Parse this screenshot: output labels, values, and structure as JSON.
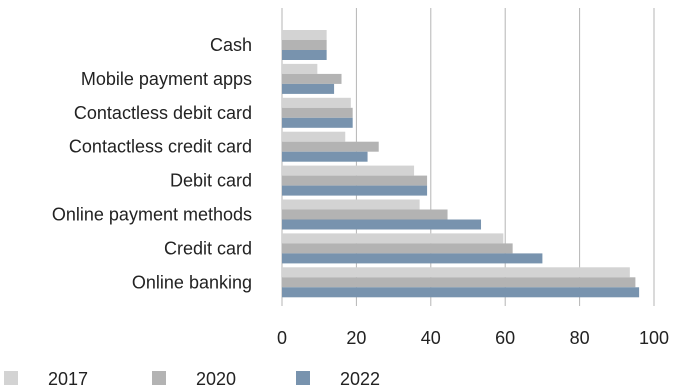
{
  "chart_data": {
    "type": "bar",
    "orientation": "horizontal",
    "categories": [
      "Cash",
      "Mobile payment apps",
      "Contactless debit card",
      "Contactless credit card",
      "Debit card",
      "Online payment methods",
      "Credit card",
      "Online banking"
    ],
    "series": [
      {
        "name": "2017",
        "color": "#d3d3d3",
        "values": [
          12,
          9.5,
          18.5,
          17,
          35.5,
          37,
          59.5,
          93.5
        ]
      },
      {
        "name": "2020",
        "color": "#b3b3b3",
        "values": [
          12,
          16,
          19,
          26,
          39,
          44.5,
          62,
          95
        ]
      },
      {
        "name": "2022",
        "color": "#7893ae",
        "values": [
          12,
          14,
          19,
          23,
          39,
          53.5,
          70,
          96
        ]
      }
    ],
    "xticks": [
      "0",
      "20",
      "40",
      "60",
      "80",
      "100"
    ],
    "xlim": [
      0,
      100
    ],
    "grid": true,
    "legend_position": "bottom-left"
  }
}
